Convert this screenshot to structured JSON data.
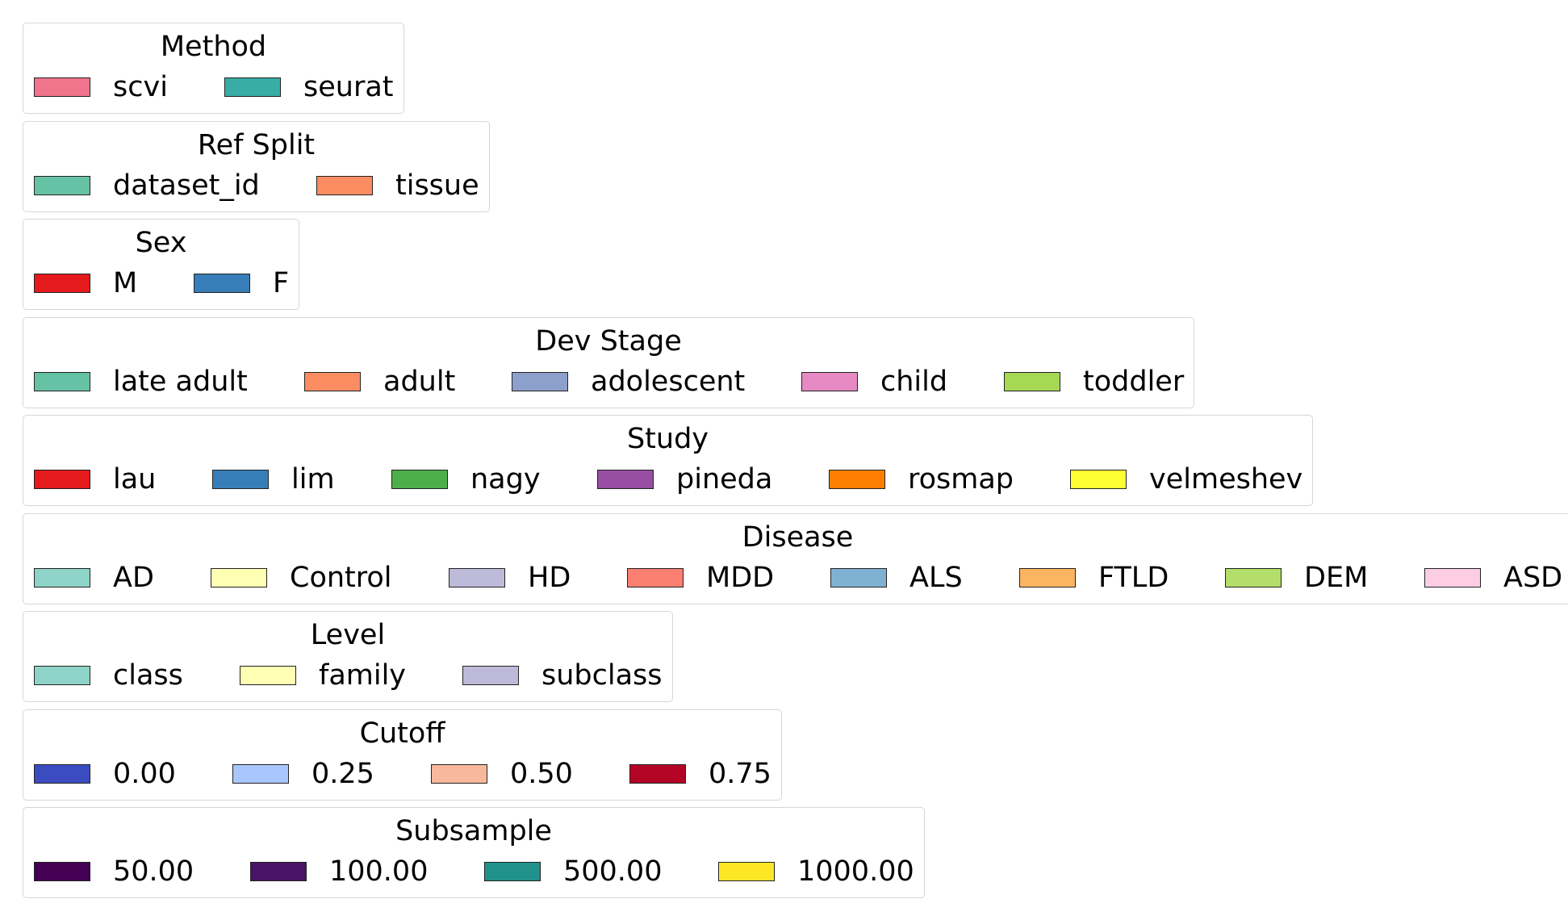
{
  "chart_data": [
    {
      "type": "legend",
      "title": "Method",
      "entries": [
        {
          "label": "scvi",
          "color": "#f0748c"
        },
        {
          "label": "seurat",
          "color": "#38ada6"
        }
      ]
    },
    {
      "type": "legend",
      "title": "Ref Split",
      "entries": [
        {
          "label": "dataset_id",
          "color": "#66c2a5"
        },
        {
          "label": "tissue",
          "color": "#fc8d62"
        }
      ]
    },
    {
      "type": "legend",
      "title": "Sex",
      "entries": [
        {
          "label": "M",
          "color": "#e41a1c"
        },
        {
          "label": "F",
          "color": "#377eb8"
        }
      ]
    },
    {
      "type": "legend",
      "title": "Dev Stage",
      "entries": [
        {
          "label": "late adult",
          "color": "#66c2a5"
        },
        {
          "label": "adult",
          "color": "#fc8d62"
        },
        {
          "label": "adolescent",
          "color": "#8da0cb"
        },
        {
          "label": "child",
          "color": "#e78ac3"
        },
        {
          "label": "toddler",
          "color": "#a6d854"
        }
      ]
    },
    {
      "type": "legend",
      "title": "Study",
      "entries": [
        {
          "label": "lau",
          "color": "#e41a1c"
        },
        {
          "label": "lim",
          "color": "#377eb8"
        },
        {
          "label": "nagy",
          "color": "#4daf4a"
        },
        {
          "label": "pineda",
          "color": "#984ea3"
        },
        {
          "label": "rosmap",
          "color": "#ff7f00"
        },
        {
          "label": "velmeshev",
          "color": "#ffff33"
        }
      ]
    },
    {
      "type": "legend",
      "title": "Disease",
      "entries": [
        {
          "label": "AD",
          "color": "#8dd3c7"
        },
        {
          "label": "Control",
          "color": "#ffffb3"
        },
        {
          "label": "HD",
          "color": "#bebada"
        },
        {
          "label": "MDD",
          "color": "#fb8072"
        },
        {
          "label": "ALS",
          "color": "#80b1d3"
        },
        {
          "label": "FTLD",
          "color": "#fdb462"
        },
        {
          "label": "DEM",
          "color": "#b3de69"
        },
        {
          "label": "ASD",
          "color": "#fccde5"
        }
      ]
    },
    {
      "type": "legend",
      "title": "Level",
      "entries": [
        {
          "label": "class",
          "color": "#8dd3c7"
        },
        {
          "label": "family",
          "color": "#ffffb3"
        },
        {
          "label": "subclass",
          "color": "#bebada"
        }
      ]
    },
    {
      "type": "legend",
      "title": "Cutoff",
      "entries": [
        {
          "label": "0.00",
          "color": "#3b4cc0"
        },
        {
          "label": "0.25",
          "color": "#aac7fd"
        },
        {
          "label": "0.50",
          "color": "#f7b89c"
        },
        {
          "label": "0.75",
          "color": "#b40426"
        }
      ]
    },
    {
      "type": "legend",
      "title": "Subsample",
      "entries": [
        {
          "label": "50.00",
          "color": "#440154"
        },
        {
          "label": "100.00",
          "color": "#481467"
        },
        {
          "label": "500.00",
          "color": "#21918c"
        },
        {
          "label": "1000.00",
          "color": "#fde725"
        }
      ]
    }
  ]
}
